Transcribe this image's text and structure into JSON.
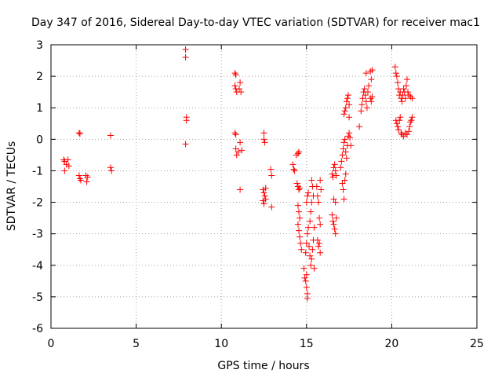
{
  "chart_data": {
    "type": "scatter",
    "title": "Day 347 of 2016, Sidereal Day-to-day VTEC variation (SDTVAR) for receiver mac1",
    "xlabel": "GPS time / hours",
    "ylabel": "SDTVAR / TECUs",
    "xlim": [
      0,
      25
    ],
    "ylim": [
      -6,
      3
    ],
    "xticks": [
      "0",
      "5",
      "10",
      "15",
      "20",
      "25"
    ],
    "yticks": [
      "-6",
      "-5",
      "-4",
      "-3",
      "-2",
      "-1",
      "0",
      "1",
      "2",
      "3"
    ],
    "grid": true,
    "marker": "+",
    "color": "#ff0000",
    "series": [
      {
        "name": "SDTVAR",
        "points": [
          [
            0.75,
            -0.65
          ],
          [
            0.8,
            -0.7
          ],
          [
            0.8,
            -1.0
          ],
          [
            0.9,
            -0.8
          ],
          [
            1.0,
            -0.65
          ],
          [
            1.05,
            -0.85
          ],
          [
            1.65,
            0.2
          ],
          [
            1.7,
            0.18
          ],
          [
            1.65,
            -1.15
          ],
          [
            1.7,
            -1.25
          ],
          [
            1.75,
            -1.3
          ],
          [
            2.05,
            -1.15
          ],
          [
            2.1,
            -1.35
          ],
          [
            2.15,
            -1.2
          ],
          [
            3.5,
            0.12
          ],
          [
            3.5,
            -0.9
          ],
          [
            3.55,
            -1.0
          ],
          [
            7.9,
            2.85
          ],
          [
            7.9,
            2.6
          ],
          [
            7.95,
            0.7
          ],
          [
            7.95,
            0.6
          ],
          [
            7.9,
            -0.15
          ],
          [
            10.8,
            2.1
          ],
          [
            10.85,
            2.05
          ],
          [
            10.8,
            1.7
          ],
          [
            10.85,
            1.6
          ],
          [
            10.9,
            1.5
          ],
          [
            11.05,
            1.6
          ],
          [
            11.1,
            1.8
          ],
          [
            11.15,
            1.5
          ],
          [
            10.8,
            0.2
          ],
          [
            10.85,
            0.15
          ],
          [
            10.85,
            -0.3
          ],
          [
            10.9,
            -0.5
          ],
          [
            11.0,
            -0.4
          ],
          [
            11.1,
            -0.1
          ],
          [
            11.2,
            -0.35
          ],
          [
            11.1,
            -1.6
          ],
          [
            12.5,
            0.2
          ],
          [
            12.5,
            0.0
          ],
          [
            12.55,
            -0.1
          ],
          [
            12.45,
            -1.6
          ],
          [
            12.5,
            -1.7
          ],
          [
            12.55,
            -1.8
          ],
          [
            12.6,
            -1.9
          ],
          [
            12.5,
            -2.05
          ],
          [
            12.45,
            -1.95
          ],
          [
            12.6,
            -1.55
          ],
          [
            12.9,
            -0.95
          ],
          [
            12.95,
            -1.15
          ],
          [
            12.95,
            -2.15
          ],
          [
            14.2,
            -0.8
          ],
          [
            14.25,
            -0.95
          ],
          [
            14.3,
            -1.0
          ],
          [
            14.4,
            -0.5
          ],
          [
            14.5,
            -0.45
          ],
          [
            14.55,
            -0.4
          ],
          [
            14.45,
            -1.4
          ],
          [
            14.5,
            -1.5
          ],
          [
            14.55,
            -1.6
          ],
          [
            14.6,
            -1.55
          ],
          [
            14.5,
            -2.1
          ],
          [
            14.55,
            -2.3
          ],
          [
            14.6,
            -2.5
          ],
          [
            14.5,
            -2.7
          ],
          [
            14.55,
            -2.9
          ],
          [
            14.6,
            -3.1
          ],
          [
            14.65,
            -3.3
          ],
          [
            14.7,
            -3.5
          ],
          [
            14.85,
            -4.1
          ],
          [
            14.9,
            -4.4
          ],
          [
            14.95,
            -4.5
          ],
          [
            15.0,
            -4.3
          ],
          [
            15.0,
            -4.7
          ],
          [
            15.05,
            -4.9
          ],
          [
            15.05,
            -5.05
          ],
          [
            14.95,
            -3.6
          ],
          [
            15.0,
            -3.3
          ],
          [
            15.05,
            -3.0
          ],
          [
            15.1,
            -2.8
          ],
          [
            15.15,
            -3.4
          ],
          [
            15.2,
            -3.7
          ],
          [
            15.25,
            -4.0
          ],
          [
            15.3,
            -3.8
          ],
          [
            15.35,
            -3.5
          ],
          [
            15.4,
            -3.2
          ],
          [
            15.45,
            -4.1
          ],
          [
            15.0,
            -2.0
          ],
          [
            15.05,
            -1.8
          ],
          [
            15.1,
            -1.7
          ],
          [
            15.2,
            -2.6
          ],
          [
            15.25,
            -2.3
          ],
          [
            15.3,
            -2.0
          ],
          [
            15.35,
            -1.5
          ],
          [
            15.3,
            -1.3
          ],
          [
            15.4,
            -1.8
          ],
          [
            15.45,
            -2.8
          ],
          [
            15.6,
            -1.5
          ],
          [
            15.65,
            -1.8
          ],
          [
            15.7,
            -2.0
          ],
          [
            15.75,
            -2.5
          ],
          [
            15.8,
            -2.7
          ],
          [
            15.65,
            -3.2
          ],
          [
            15.7,
            -3.4
          ],
          [
            15.75,
            -3.3
          ],
          [
            15.8,
            -3.6
          ],
          [
            15.85,
            -1.6
          ],
          [
            15.8,
            -1.3
          ],
          [
            16.5,
            -1.1
          ],
          [
            16.55,
            -1.2
          ],
          [
            16.6,
            -0.9
          ],
          [
            16.65,
            -0.8
          ],
          [
            16.7,
            -1.0
          ],
          [
            16.75,
            -1.15
          ],
          [
            16.5,
            -2.4
          ],
          [
            16.55,
            -2.6
          ],
          [
            16.6,
            -2.7
          ],
          [
            16.65,
            -2.85
          ],
          [
            16.7,
            -3.0
          ],
          [
            16.75,
            -2.5
          ],
          [
            16.7,
            -2.0
          ],
          [
            16.6,
            -1.9
          ],
          [
            17.0,
            -0.9
          ],
          [
            17.05,
            -0.7
          ],
          [
            17.1,
            -0.5
          ],
          [
            17.15,
            -0.3
          ],
          [
            17.2,
            -0.1
          ],
          [
            17.25,
            0.0
          ],
          [
            17.3,
            -0.4
          ],
          [
            17.35,
            -0.6
          ],
          [
            17.4,
            -0.2
          ],
          [
            17.45,
            0.1
          ],
          [
            17.5,
            0.2
          ],
          [
            17.55,
            0.05
          ],
          [
            17.6,
            -0.2
          ],
          [
            17.1,
            -1.4
          ],
          [
            17.15,
            -1.6
          ],
          [
            17.2,
            -1.9
          ],
          [
            17.25,
            -1.3
          ],
          [
            17.3,
            -1.1
          ],
          [
            17.2,
            0.8
          ],
          [
            17.25,
            0.9
          ],
          [
            17.3,
            1.0
          ],
          [
            17.35,
            1.2
          ],
          [
            17.4,
            1.3
          ],
          [
            17.45,
            1.4
          ],
          [
            17.5,
            1.1
          ],
          [
            17.5,
            0.7
          ],
          [
            18.1,
            0.4
          ],
          [
            18.2,
            0.9
          ],
          [
            18.25,
            1.1
          ],
          [
            18.3,
            1.3
          ],
          [
            18.35,
            1.5
          ],
          [
            18.4,
            1.6
          ],
          [
            18.45,
            1.4
          ],
          [
            18.5,
            1.2
          ],
          [
            18.55,
            1.0
          ],
          [
            18.6,
            1.5
          ],
          [
            18.65,
            1.7
          ],
          [
            18.75,
            1.3
          ],
          [
            18.8,
            1.2
          ],
          [
            18.85,
            1.35
          ],
          [
            18.5,
            2.1
          ],
          [
            18.75,
            2.15
          ],
          [
            18.85,
            2.2
          ],
          [
            18.8,
            1.9
          ],
          [
            20.2,
            2.3
          ],
          [
            20.25,
            2.1
          ],
          [
            20.3,
            2.0
          ],
          [
            20.35,
            1.8
          ],
          [
            20.4,
            1.6
          ],
          [
            20.45,
            1.4
          ],
          [
            20.5,
            1.5
          ],
          [
            20.55,
            1.3
          ],
          [
            20.6,
            1.2
          ],
          [
            20.65,
            1.4
          ],
          [
            20.7,
            1.6
          ],
          [
            20.75,
            1.5
          ],
          [
            20.8,
            1.3
          ],
          [
            20.85,
            1.7
          ],
          [
            20.9,
            1.9
          ],
          [
            20.95,
            1.5
          ],
          [
            21.0,
            1.4
          ],
          [
            21.1,
            1.35
          ],
          [
            21.2,
            1.3
          ],
          [
            20.25,
            0.6
          ],
          [
            20.3,
            0.5
          ],
          [
            20.35,
            0.4
          ],
          [
            20.4,
            0.3
          ],
          [
            20.45,
            0.6
          ],
          [
            20.5,
            0.7
          ],
          [
            20.55,
            0.2
          ],
          [
            20.6,
            0.15
          ],
          [
            20.7,
            0.1
          ],
          [
            20.8,
            0.2
          ],
          [
            20.9,
            0.15
          ],
          [
            21.0,
            0.25
          ],
          [
            21.05,
            0.4
          ],
          [
            21.1,
            0.55
          ],
          [
            21.15,
            0.6
          ],
          [
            21.2,
            0.7
          ]
        ]
      }
    ]
  }
}
